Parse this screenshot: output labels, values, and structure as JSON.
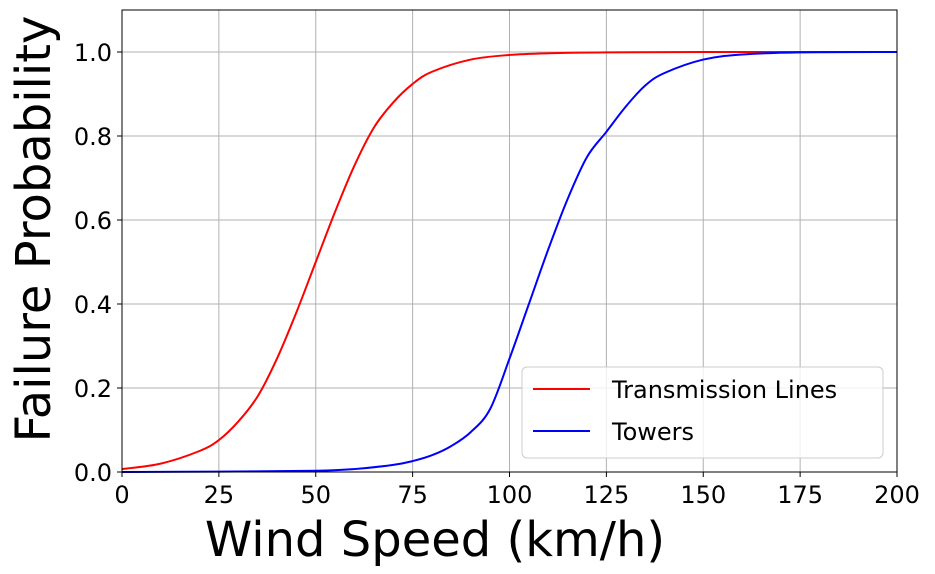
{
  "chart_data": {
    "type": "line",
    "xlabel": "Wind Speed (km/h)",
    "ylabel": "Failure Probability",
    "xlim": [
      0,
      200
    ],
    "ylim": [
      0,
      1.1
    ],
    "x_ticks": [
      "0",
      "25",
      "50",
      "75",
      "100",
      "125",
      "150",
      "175",
      "200"
    ],
    "y_ticks": [
      "0.0",
      "0.2",
      "0.4",
      "0.6",
      "0.8",
      "1.0"
    ],
    "grid": true,
    "legend_position": "lower-right",
    "series": [
      {
        "name": "Transmission Lines",
        "color": "#ff0000",
        "x": [
          0,
          10,
          20,
          25,
          30,
          35,
          40,
          45,
          50,
          55,
          60,
          65,
          70,
          75,
          80,
          90,
          100,
          110,
          125,
          150,
          175,
          200
        ],
        "y": [
          0.007,
          0.02,
          0.05,
          0.076,
          0.12,
          0.18,
          0.27,
          0.38,
          0.5,
          0.62,
          0.73,
          0.82,
          0.88,
          0.924,
          0.953,
          0.982,
          0.993,
          0.997,
          0.999,
          1.0,
          1.0,
          1.0
        ]
      },
      {
        "name": "Towers",
        "color": "#0000ff",
        "x": [
          0,
          25,
          50,
          60,
          70,
          75,
          80,
          85,
          90,
          95,
          100,
          105,
          110,
          115,
          120,
          125,
          130,
          135,
          140,
          150,
          160,
          175,
          200
        ],
        "y": [
          0.0,
          0.001,
          0.003,
          0.007,
          0.017,
          0.026,
          0.04,
          0.062,
          0.095,
          0.15,
          0.27,
          0.4,
          0.53,
          0.65,
          0.75,
          0.81,
          0.87,
          0.92,
          0.95,
          0.982,
          0.994,
          0.999,
          1.0
        ]
      }
    ]
  }
}
